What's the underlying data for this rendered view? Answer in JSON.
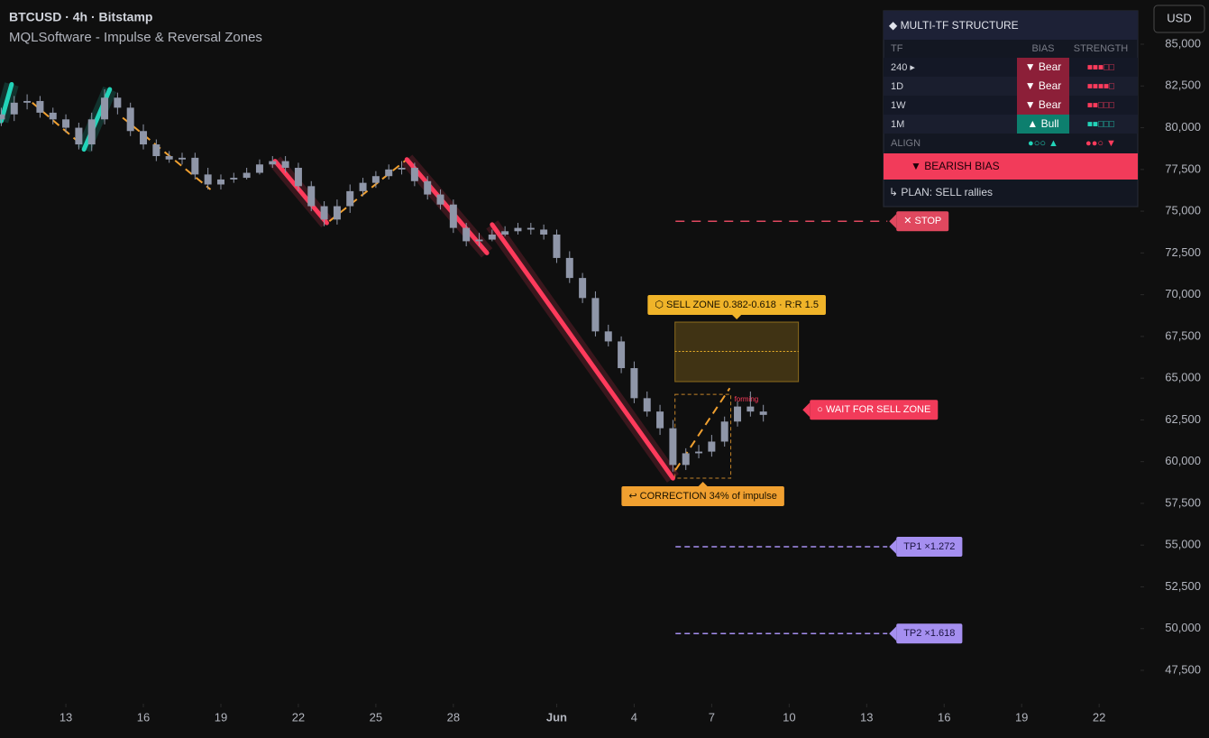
{
  "header": {
    "symbol": "BTCUSD · 4h · Bitstamp",
    "indicator": "MQLSoftware - Impulse & Reversal Zones",
    "currency": "USD"
  },
  "chart_data": {
    "type": "candlestick",
    "color": "#8f96a8",
    "x": [
      10.5,
      11,
      11.5,
      12,
      12.5,
      13,
      13.5,
      14,
      14.5,
      15,
      15.5,
      16,
      16.5,
      17,
      17.5,
      18,
      18.5,
      19,
      19.5,
      20,
      20.5,
      21,
      21.5,
      22,
      22.5,
      23,
      23.5,
      24,
      24.5,
      25,
      25.5,
      26,
      26.5,
      27,
      27.5,
      28,
      28.5,
      29,
      29.5,
      30,
      30.5,
      31,
      31.5,
      32,
      32.5,
      33,
      33.5,
      34,
      34.5,
      35,
      35.5,
      36,
      36.5,
      37,
      37.5,
      38,
      38.5,
      39,
      39.5,
      40
    ],
    "open": [
      80500,
      80800,
      81500,
      81600,
      80900,
      80500,
      80000,
      79000,
      80500,
      81800,
      81200,
      79800,
      79000,
      78300,
      78100,
      78200,
      77200,
      76600,
      76900,
      77000,
      77300,
      77800,
      78000,
      77600,
      76500,
      75300,
      74500,
      75300,
      76200,
      76700,
      77100,
      77500,
      77600,
      76800,
      76000,
      75400,
      74000,
      73200,
      73300,
      73600,
      73800,
      74000,
      73900,
      73600,
      72200,
      71000,
      69800,
      67800,
      67200,
      65600,
      63800,
      63000,
      62000,
      59800,
      60500,
      60600,
      61200,
      62400,
      63300,
      63000
    ],
    "high": [
      81200,
      81900,
      82000,
      81900,
      81200,
      80800,
      80300,
      80900,
      82300,
      82100,
      81500,
      80200,
      79300,
      78600,
      78500,
      78500,
      77600,
      77200,
      77300,
      77600,
      78100,
      78300,
      78300,
      77900,
      76800,
      75600,
      75700,
      76600,
      77000,
      77400,
      77800,
      78000,
      77900,
      77100,
      76300,
      75700,
      74300,
      73700,
      73900,
      74100,
      74300,
      74300,
      74200,
      73900,
      72600,
      71300,
      70200,
      68200,
      67500,
      66000,
      64200,
      63400,
      62500,
      60800,
      61000,
      61600,
      62700,
      63600,
      64200,
      63400
    ],
    "low": [
      80100,
      80400,
      81100,
      80600,
      80200,
      79700,
      78700,
      78600,
      80200,
      80800,
      79500,
      78700,
      78000,
      77900,
      77800,
      76900,
      76300,
      76300,
      76700,
      76900,
      77200,
      77600,
      77300,
      76200,
      75000,
      74100,
      74200,
      74900,
      75900,
      76400,
      76900,
      77200,
      76500,
      75700,
      75100,
      73700,
      72900,
      72900,
      73200,
      73500,
      73600,
      73600,
      73300,
      71900,
      70700,
      69500,
      67500,
      66900,
      65300,
      63500,
      62700,
      61600,
      59400,
      59500,
      60200,
      60300,
      60900,
      62100,
      62700,
      62400
    ],
    "close": [
      80800,
      81500,
      81600,
      80900,
      80500,
      80000,
      79000,
      80500,
      81800,
      81200,
      79800,
      79000,
      78300,
      78100,
      78200,
      77200,
      76600,
      76900,
      77000,
      77300,
      77800,
      78000,
      77600,
      76500,
      75300,
      74500,
      75300,
      76200,
      76700,
      77100,
      77500,
      77600,
      76800,
      76000,
      75400,
      74000,
      73200,
      73300,
      73600,
      73800,
      74000,
      73900,
      73600,
      72200,
      71000,
      69800,
      67800,
      67200,
      65600,
      63800,
      63000,
      62000,
      59800,
      60500,
      60600,
      61200,
      62400,
      63300,
      63000,
      62800
    ],
    "xlim": [
      10.45,
      54.6
    ],
    "xticks": [
      {
        "value": 13,
        "label": "13"
      },
      {
        "value": 16,
        "label": "16"
      },
      {
        "value": 19,
        "label": "19"
      },
      {
        "value": 22,
        "label": "22"
      },
      {
        "value": 25,
        "label": "25"
      },
      {
        "value": 28,
        "label": "28"
      },
      {
        "value": 32,
        "label": "Jun"
      },
      {
        "value": 35,
        "label": "4"
      },
      {
        "value": 38,
        "label": "7"
      },
      {
        "value": 41,
        "label": "10"
      },
      {
        "value": 44,
        "label": "13"
      },
      {
        "value": 47,
        "label": "16"
      },
      {
        "value": 50,
        "label": "19"
      },
      {
        "value": 53,
        "label": "22"
      }
    ],
    "ylim": [
      45500,
      87650
    ],
    "yticks": [
      {
        "value": 47500,
        "label": "47,500"
      },
      {
        "value": 50000,
        "label": "50,000"
      },
      {
        "value": 52500,
        "label": "52,500"
      },
      {
        "value": 55000,
        "label": "55,000"
      },
      {
        "value": 57500,
        "label": "57,500"
      },
      {
        "value": 60000,
        "label": "60,000"
      },
      {
        "value": 62500,
        "label": "62,500"
      },
      {
        "value": 65000,
        "label": "65,000"
      },
      {
        "value": 67500,
        "label": "67,500"
      },
      {
        "value": 70000,
        "label": "70,000"
      },
      {
        "value": 72500,
        "label": "72,500"
      },
      {
        "value": 75000,
        "label": "75,000"
      },
      {
        "value": 77500,
        "label": "77,500"
      },
      {
        "value": 80000,
        "label": "80,000"
      },
      {
        "value": 82500,
        "label": "82,500"
      },
      {
        "value": 85000,
        "label": "85,000"
      }
    ],
    "impulse_legs": [
      {
        "x": [
          10.5,
          10.9
        ],
        "y": [
          80400,
          82600
        ],
        "color": "#22d3b8"
      },
      {
        "x": [
          13.7,
          14.7
        ],
        "y": [
          78700,
          82300
        ],
        "color": "#22d3b8"
      },
      {
        "x": [
          21.1,
          23.1
        ],
        "y": [
          78000,
          74300
        ],
        "color": "#ff3b5c"
      },
      {
        "x": [
          26.2,
          29.3
        ],
        "y": [
          78100,
          72500
        ],
        "color": "#ff3b5c"
      },
      {
        "x": [
          29.5,
          36.5
        ],
        "y": [
          74200,
          59000
        ],
        "color": "#ff3b5c"
      }
    ],
    "zigzag": {
      "color": "#f0a030",
      "segments": [
        {
          "x": [
            11.7,
            13.6
          ],
          "y": [
            81500,
            79000
          ]
        },
        {
          "x": [
            15.2,
            18.6
          ],
          "y": [
            80600,
            76300
          ]
        },
        {
          "x": [
            23.2,
            26.2
          ],
          "y": [
            74400,
            78100
          ]
        },
        {
          "x": [
            36.6,
            38.7
          ],
          "y": [
            59500,
            64400
          ]
        }
      ]
    },
    "levels": [
      {
        "label": "✕ STOP",
        "value": 74400,
        "x": [
          36.6,
          44.8
        ],
        "color": "#e0485f",
        "text_color": "#ffffff"
      },
      {
        "label": "TP1  ×1.272",
        "value": 54900,
        "x": [
          36.6,
          44.8
        ],
        "color": "#a58ff0",
        "text_color": "#1a1440"
      },
      {
        "label": "TP2  ×1.618",
        "value": 49700,
        "x": [
          36.6,
          44.8
        ],
        "color": "#a58ff0",
        "text_color": "#1a1440"
      }
    ],
    "sell_zone": {
      "label": "⬡ SELL ZONE 0.382-0.618  ·  R:R 1.5",
      "range": [
        64790,
        68360
      ],
      "mid": 66600,
      "x": [
        36.58,
        41.36
      ],
      "color": "#f0b429"
    },
    "correction": {
      "label": "↩ CORRECTION  34% of impulse",
      "range": [
        59010,
        64030
      ],
      "x": [
        36.58,
        38.74
      ],
      "color": "#f0a030",
      "status": "forming"
    },
    "status": {
      "label": "○ WAIT FOR SELL ZONE",
      "value": 63100,
      "x": 41.8,
      "color": "#f23b5a"
    }
  },
  "panel": {
    "title": "◆  MULTI-TF STRUCTURE",
    "columns": [
      "TF",
      "BIAS",
      "STRENGTH"
    ],
    "rows": [
      {
        "tf": "240  ▸",
        "bias": "▼ Bear",
        "strength": "■■■□□",
        "color": "#ff3b5c",
        "bg": "#8c1f38"
      },
      {
        "tf": "1D",
        "bias": "▼ Bear",
        "strength": "■■■■□",
        "color": "#ff3b5c",
        "bg": "#8c1f38"
      },
      {
        "tf": "1W",
        "bias": "▼ Bear",
        "strength": "■■□□□",
        "color": "#ff3b5c",
        "bg": "#8c1f38"
      },
      {
        "tf": "1M",
        "bias": "▲ Bull",
        "strength": "■■□□□",
        "color": "#22d3b8",
        "bg": "#0d7f6e"
      }
    ],
    "align": {
      "label": "ALIGN",
      "bias": "●○○ ▲",
      "bias_color": "#22d3b8",
      "strength": "●●○ ▼",
      "strength_color": "#ff3b5c"
    },
    "verdict": "▼ BEARISH BIAS",
    "plan": "↳ PLAN:  SELL rallies"
  }
}
